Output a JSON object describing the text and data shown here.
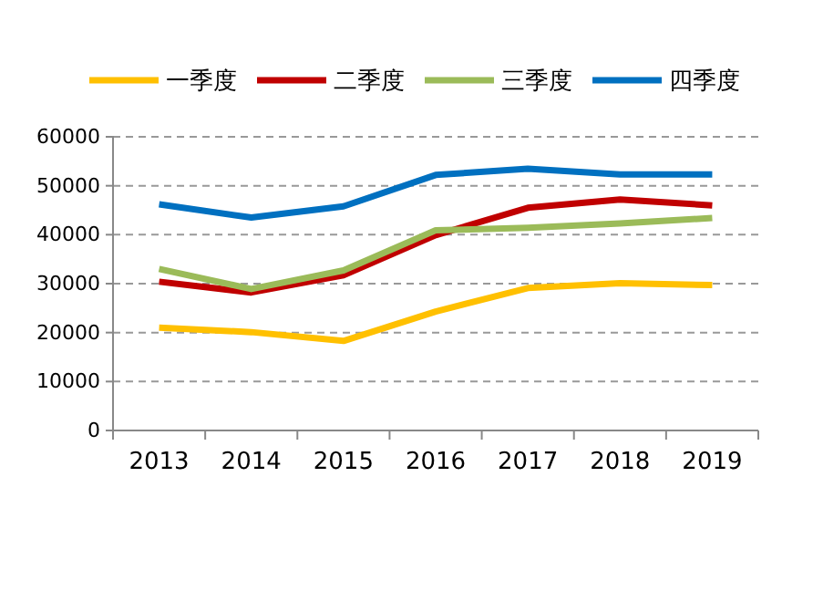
{
  "chart_data": {
    "type": "line",
    "categories": [
      "2013",
      "2014",
      "2015",
      "2016",
      "2017",
      "2018",
      "2019"
    ],
    "series": [
      {
        "name": "一季度",
        "color": "#ffc000",
        "values": [
          21000,
          20100,
          18300,
          24300,
          29100,
          30100,
          29700
        ]
      },
      {
        "name": "二季度",
        "color": "#c00000",
        "values": [
          30400,
          28200,
          31700,
          39900,
          45500,
          47200,
          46000
        ]
      },
      {
        "name": "三季度",
        "color": "#9bbb59",
        "values": [
          33000,
          28900,
          32700,
          40900,
          41400,
          42300,
          43400
        ]
      },
      {
        "name": "四季度",
        "color": "#0070c0",
        "values": [
          46200,
          43500,
          45800,
          52200,
          53500,
          52300,
          52300
        ]
      }
    ],
    "ylim": [
      0,
      60000
    ],
    "yticks": [
      0,
      10000,
      20000,
      30000,
      40000,
      50000,
      60000
    ],
    "grid": "y",
    "legend": "top",
    "marker": "none",
    "line_style": "solid"
  }
}
